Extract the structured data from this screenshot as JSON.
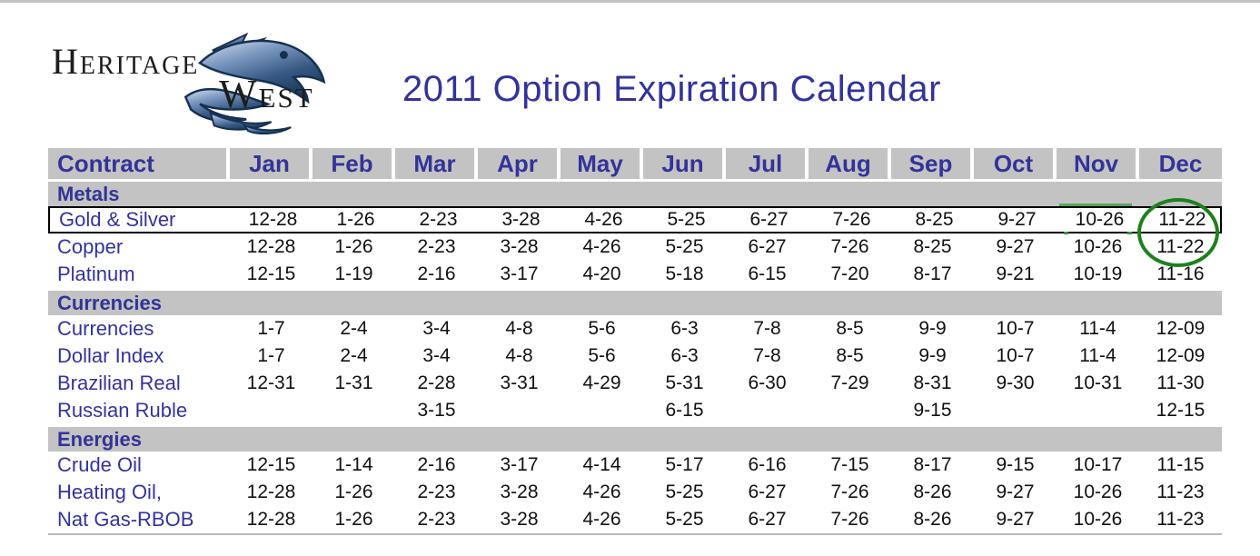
{
  "header": {
    "title": "2011 Option Expiration Calendar",
    "logo": {
      "heritage_text": "Heritage",
      "west_text": "West"
    }
  },
  "table": {
    "columns": [
      "Contract",
      "Jan",
      "Feb",
      "Mar",
      "Apr",
      "May",
      "Jun",
      "Jul",
      "Aug",
      "Sep",
      "Oct",
      "Nov",
      "Dec"
    ],
    "sections": [
      {
        "name": "Metals",
        "rows": [
          {
            "label": "Gold & Silver",
            "boxed": true,
            "values": [
              "12-28",
              "1-26",
              "2-23",
              "3-28",
              "4-26",
              "5-25",
              "6-27",
              "7-26",
              "8-25",
              "9-27",
              "10-26",
              "11-22"
            ]
          },
          {
            "label": "Copper",
            "boxed": false,
            "values": [
              "12-28",
              "1-26",
              "2-23",
              "3-28",
              "4-26",
              "5-25",
              "6-27",
              "7-26",
              "8-25",
              "9-27",
              "10-26",
              "11-22"
            ]
          },
          {
            "label": "Platinum",
            "boxed": false,
            "values": [
              "12-15",
              "1-19",
              "2-16",
              "3-17",
              "4-20",
              "5-18",
              "6-15",
              "7-20",
              "8-17",
              "9-21",
              "10-19",
              "11-16"
            ]
          }
        ]
      },
      {
        "name": "Currencies",
        "rows": [
          {
            "label": "Currencies",
            "boxed": false,
            "values": [
              "1-7",
              "2-4",
              "3-4",
              "4-8",
              "5-6",
              "6-3",
              "7-8",
              "8-5",
              "9-9",
              "10-7",
              "11-4",
              "12-09"
            ]
          },
          {
            "label": "Dollar Index",
            "boxed": false,
            "values": [
              "1-7",
              "2-4",
              "3-4",
              "4-8",
              "5-6",
              "6-3",
              "7-8",
              "8-5",
              "9-9",
              "10-7",
              "11-4",
              "12-09"
            ]
          },
          {
            "label": "Brazilian Real",
            "boxed": false,
            "values": [
              "12-31",
              "1-31",
              "2-28",
              "3-31",
              "4-29",
              "5-31",
              "6-30",
              "7-29",
              "8-31",
              "9-30",
              "10-31",
              "11-30"
            ]
          },
          {
            "label": "Russian Ruble",
            "boxed": false,
            "values": [
              "",
              "",
              "3-15",
              "",
              "",
              "6-15",
              "",
              "",
              "9-15",
              "",
              "",
              "12-15"
            ]
          }
        ]
      },
      {
        "name": "Energies",
        "rows": [
          {
            "label": "Crude Oil",
            "boxed": false,
            "values": [
              "12-15",
              "1-14",
              "2-16",
              "3-17",
              "4-14",
              "5-17",
              "6-16",
              "7-15",
              "8-17",
              "9-15",
              "10-17",
              "11-15"
            ]
          },
          {
            "label": "Heating Oil,",
            "boxed": false,
            "values": [
              "12-28",
              "1-26",
              "2-23",
              "3-28",
              "4-26",
              "5-25",
              "6-27",
              "7-26",
              "8-26",
              "9-27",
              "10-26",
              "11-23"
            ]
          },
          {
            "label": "Nat Gas-RBOB",
            "boxed": false,
            "values": [
              "12-28",
              "1-26",
              "2-23",
              "3-28",
              "4-26",
              "5-25",
              "6-27",
              "7-26",
              "8-26",
              "9-27",
              "10-26",
              "11-23"
            ]
          }
        ]
      }
    ]
  },
  "annotations": {
    "black_box_row": "Gold & Silver",
    "green_circle_around": [
      "11-22",
      "11-22"
    ],
    "green_circle_columns": "Dec (Gold & Silver, Copper)"
  },
  "colors": {
    "accent_navy": "#333399",
    "band_gray": "#c3c3c3",
    "annotation_green": "#1e801e",
    "box_black": "#000000",
    "value_black": "#111111"
  }
}
